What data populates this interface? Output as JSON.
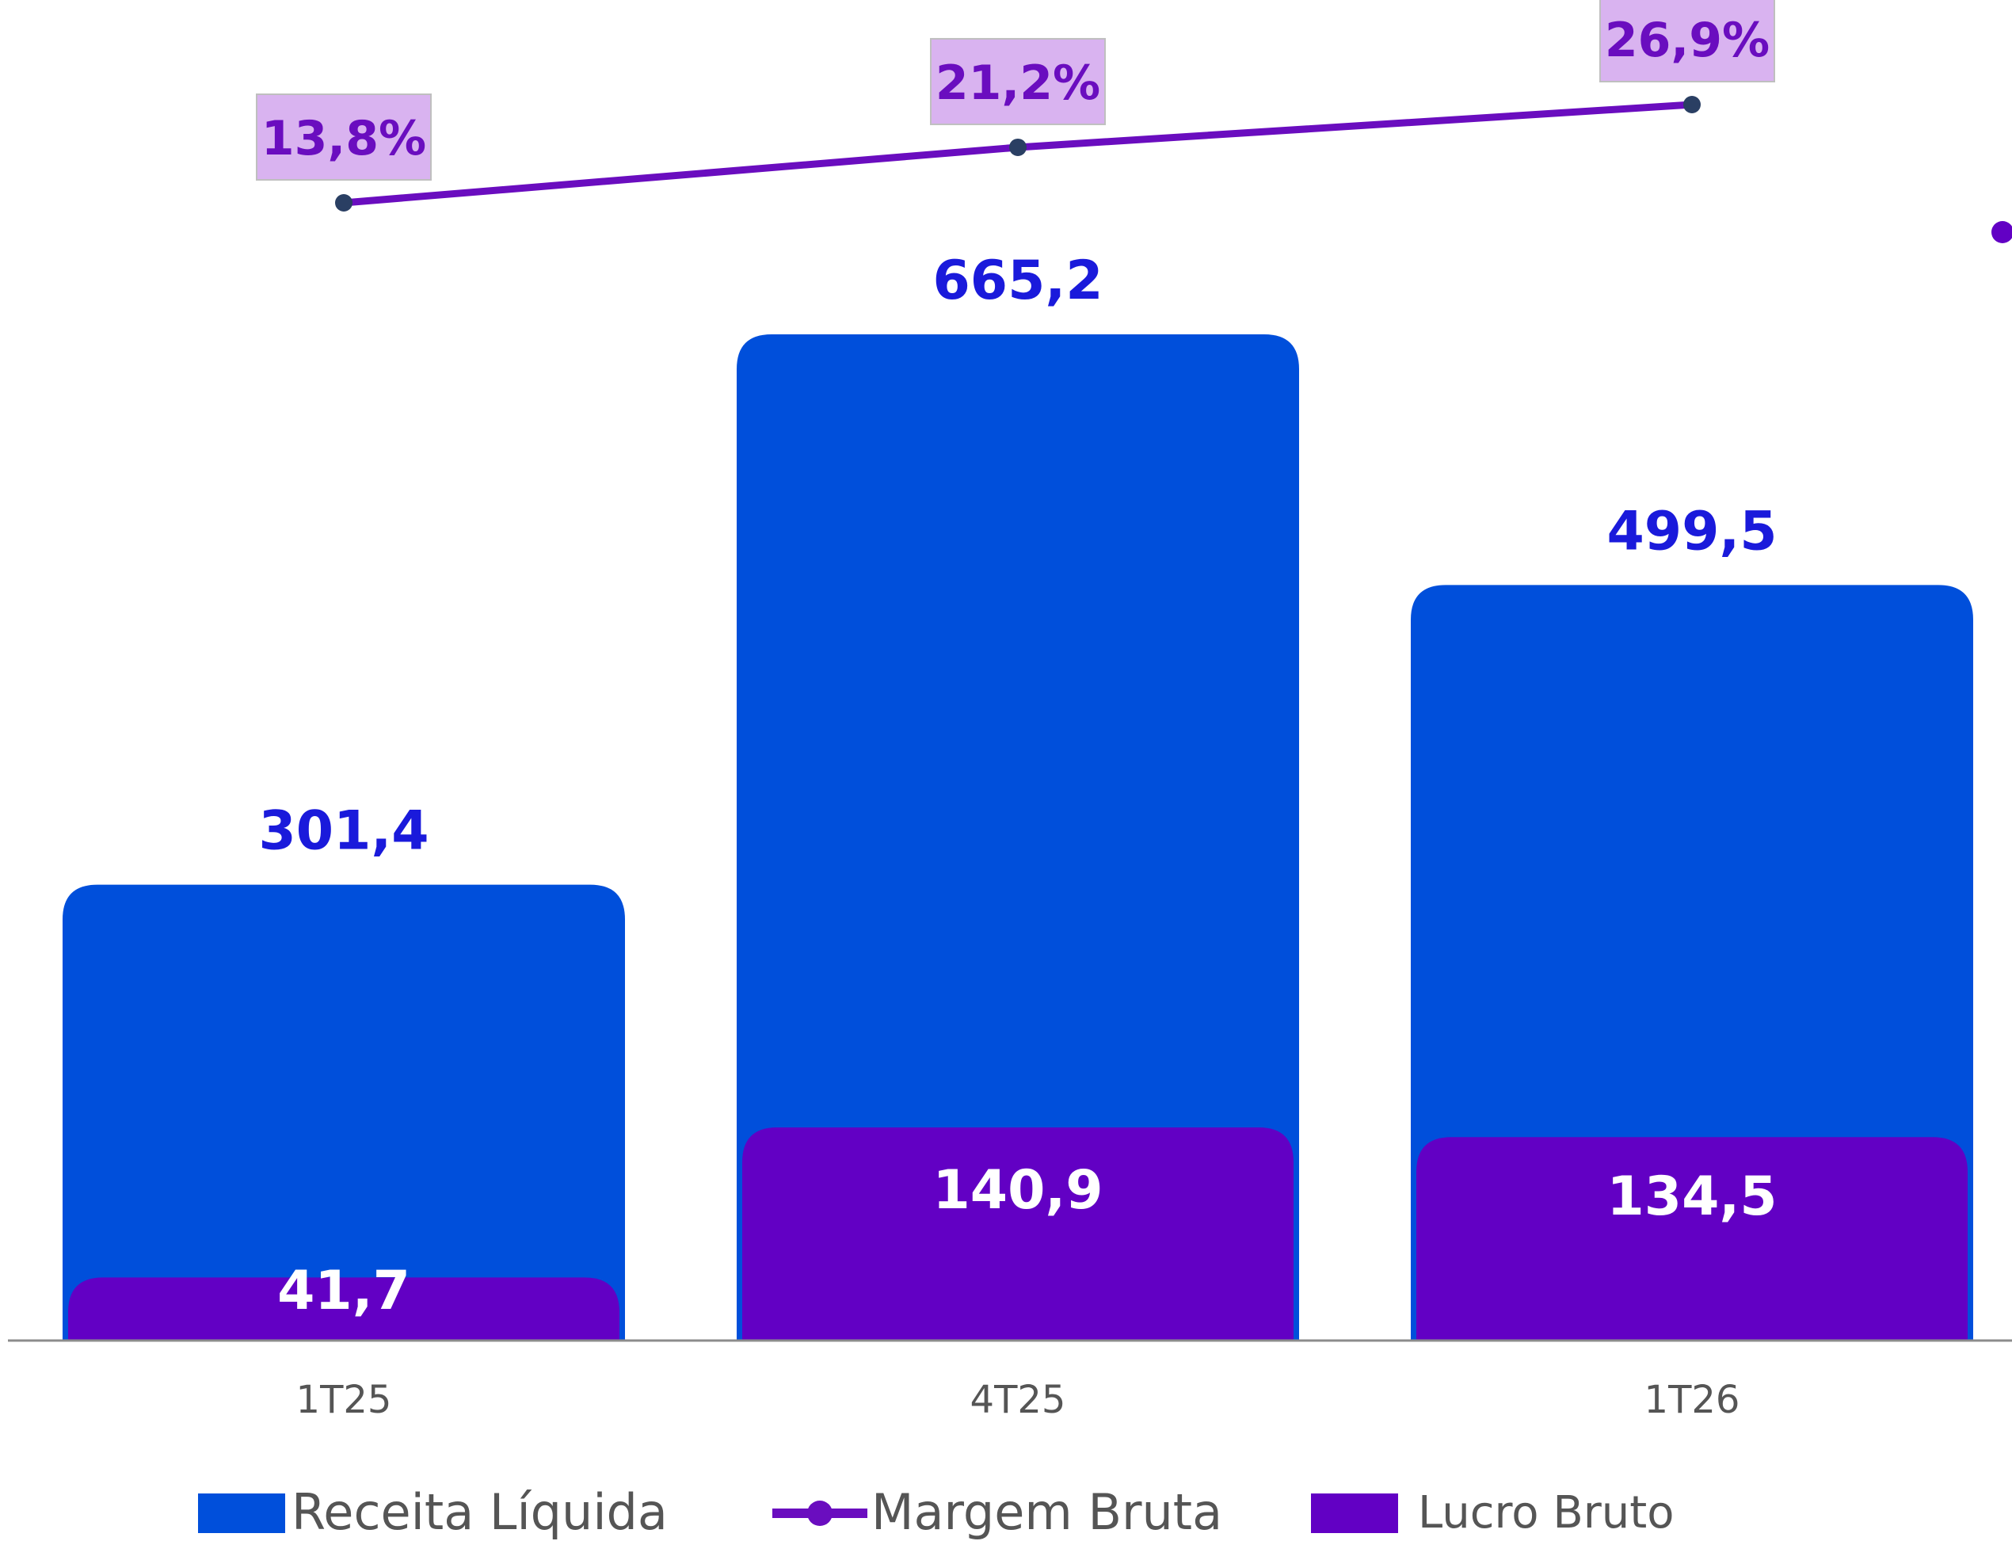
{
  "chart_data": {
    "type": "bar",
    "categories": [
      "1T25",
      "4T25",
      "1T26"
    ],
    "series": [
      {
        "name": "Receita Líquida",
        "kind": "bar",
        "values": [
          301.4,
          665.2,
          499.5
        ],
        "labels": [
          "301,4",
          "665,2",
          "499,5"
        ],
        "color": "#004fdb",
        "label_color": "#1a1adb"
      },
      {
        "name": "Lucro Bruto",
        "kind": "bar",
        "values": [
          41.7,
          140.9,
          134.5
        ],
        "labels": [
          "41,7",
          "140,9",
          "134,5"
        ],
        "color": "#6200c4",
        "label_color": "#ffffff"
      },
      {
        "name": "Margem Bruta",
        "kind": "line",
        "values": [
          13.8,
          21.2,
          26.9
        ],
        "labels": [
          "13,8%",
          "21,2%",
          "26,9%"
        ],
        "color": "#6a0dbf",
        "marker_color": "#2a3f63",
        "label_bg": "#d9b3f0",
        "label_color": "#6a0dbf"
      }
    ],
    "legend": {
      "position": "bottom",
      "items": [
        {
          "name": "Receita Líquida",
          "symbol": "bar",
          "color": "#004fdb"
        },
        {
          "name": "Margem Bruta",
          "symbol": "line",
          "color": "#6a0dbf"
        },
        {
          "name": "Lucro Bruto",
          "symbol": "bar",
          "color": "#6200c4"
        }
      ]
    },
    "ylim": [
      0,
      665.2
    ],
    "grid": false,
    "title": "",
    "xlabel": "",
    "ylabel": ""
  }
}
